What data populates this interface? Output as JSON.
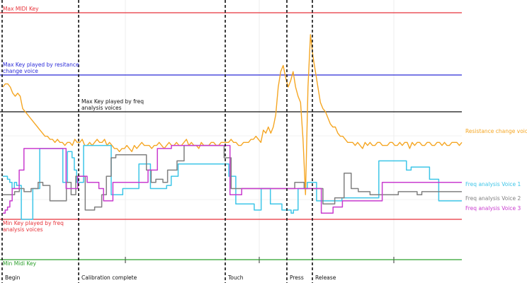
{
  "chart_data": {
    "type": "line",
    "title": "",
    "xlabel": "",
    "ylabel": "",
    "grid": true,
    "reference_lines": [
      {
        "name": "max_midi",
        "label": "Max MIDI Key",
        "color": "#e8333a"
      },
      {
        "name": "max_resistance",
        "label": "Max Key played by resitance change voice",
        "label_lines": [
          "Max Key played by resitance",
          "change voice"
        ],
        "color": "#2a2ad8"
      },
      {
        "name": "max_freq",
        "label": "Max Key played by freq analysis voices",
        "label_lines": [
          "Max Key played by freq",
          "analysis voices"
        ],
        "color": "#111111"
      },
      {
        "name": "min_freq",
        "label": "Min Key played by freq analysis voices",
        "label_lines": [
          "Min Key played by freq",
          "analysis voices"
        ],
        "color": "#e8333a"
      },
      {
        "name": "min_midi",
        "label": "Min Midi Key",
        "color": "#2ca02c"
      }
    ],
    "events": [
      {
        "label": "Begin"
      },
      {
        "label": "Calibration complete"
      },
      {
        "label": "Touch"
      },
      {
        "label": "Press"
      },
      {
        "label": "Release"
      }
    ],
    "series": [
      {
        "name": "Resistance change voice",
        "color": "#f5a623",
        "values": [
          55,
          56,
          56,
          55,
          53,
          52,
          53,
          52,
          48,
          47,
          46,
          45,
          44,
          43,
          42,
          41,
          40,
          39,
          39,
          38,
          38,
          37,
          38,
          37,
          37,
          36,
          37,
          37,
          36,
          38,
          37,
          37,
          38,
          36,
          36,
          37,
          36,
          37,
          38,
          37,
          37,
          38,
          36,
          37,
          36,
          35,
          35,
          34,
          35,
          35,
          36,
          35,
          34,
          36,
          35,
          36,
          37,
          36,
          36,
          36,
          35,
          36,
          36,
          37,
          36,
          35,
          36,
          37,
          36,
          36,
          37,
          36,
          36,
          37,
          38,
          36,
          37,
          36,
          36,
          35,
          37,
          36,
          36,
          36,
          37,
          37,
          36,
          36,
          37,
          37,
          37,
          37,
          38,
          37,
          37,
          36,
          36,
          37,
          37,
          37,
          38,
          38,
          39,
          38,
          37,
          41,
          40,
          42,
          40,
          42,
          46,
          55,
          60,
          62,
          58,
          55,
          57,
          60,
          55,
          52,
          50,
          38,
          20,
          55,
          72,
          65,
          60,
          55,
          50,
          48,
          47,
          45,
          43,
          42,
          42,
          40,
          39,
          39,
          38,
          37,
          37,
          37,
          36,
          37,
          36,
          35,
          37,
          36,
          37,
          36,
          36,
          37,
          37,
          36,
          36,
          36,
          37,
          37,
          36,
          36,
          37,
          36,
          37,
          37,
          35,
          37,
          36,
          37,
          37,
          36,
          36,
          37,
          37,
          36,
          36,
          37,
          37,
          36,
          37,
          36,
          36,
          37,
          37,
          37,
          36,
          37
        ]
      },
      {
        "name": "Freq analysis Voice 1",
        "color": "#3ec6e8",
        "values": [
          26,
          26,
          25,
          24,
          22,
          24,
          23,
          23,
          12,
          12,
          12,
          12,
          12,
          22,
          22,
          22,
          35,
          35,
          35,
          35,
          35,
          35,
          35,
          35,
          35,
          35,
          24,
          24,
          34,
          34,
          32,
          28,
          24,
          24,
          24,
          36,
          36,
          36,
          36,
          36,
          36,
          36,
          36,
          36,
          36,
          36,
          36,
          20,
          20,
          20,
          20,
          20,
          22,
          22,
          22,
          22,
          22,
          22,
          22,
          30,
          30,
          30,
          30,
          30,
          22,
          22,
          22,
          22,
          22,
          22,
          22,
          23,
          23,
          26,
          26,
          26,
          30,
          30,
          30,
          30,
          30,
          30,
          30,
          30,
          30,
          30,
          30,
          30,
          30,
          30,
          30,
          30,
          30,
          30,
          30,
          30,
          30,
          30,
          26,
          26,
          26,
          17,
          17,
          17,
          17,
          17,
          17,
          17,
          17,
          15,
          15,
          15,
          22,
          22,
          22,
          22,
          17,
          17,
          17,
          17,
          17,
          15,
          15,
          15,
          15,
          14,
          15,
          15,
          22,
          22,
          22,
          22,
          24,
          24,
          24,
          24,
          18,
          18,
          18,
          18,
          18,
          18,
          18,
          18,
          18,
          18,
          18,
          19,
          19,
          19,
          19,
          19,
          19,
          19,
          19,
          19,
          19,
          19,
          19,
          19,
          19,
          19,
          19,
          31,
          31,
          31,
          31,
          31,
          31,
          31,
          31,
          31,
          31,
          31,
          31,
          28,
          28,
          29,
          29,
          29,
          29,
          29,
          29,
          29,
          29,
          25,
          25,
          25,
          25,
          18,
          18,
          18,
          18,
          18,
          18,
          18,
          18,
          18,
          18,
          18
        ]
      },
      {
        "name": "Freq analysis Voice 2",
        "color": "#808080",
        "values": [
          20,
          20,
          20,
          20,
          20,
          21,
          21,
          22,
          22,
          21,
          21,
          21,
          22,
          22,
          22,
          24,
          24,
          23,
          23,
          23,
          18,
          18,
          18,
          18,
          18,
          18,
          18,
          24,
          24,
          20,
          20,
          26,
          26,
          26,
          26,
          15,
          15,
          15,
          15,
          16,
          16,
          16,
          20,
          20,
          26,
          26,
          32,
          32,
          33,
          33,
          33,
          33,
          33,
          33,
          33,
          33,
          33,
          33,
          33,
          33,
          33,
          28,
          28,
          24,
          24,
          25,
          25,
          25,
          24,
          24,
          28,
          28,
          28,
          28,
          31,
          31,
          31,
          36,
          36,
          36,
          36,
          36,
          36,
          36,
          36,
          36,
          36,
          36,
          36,
          36,
          36,
          36,
          36,
          36,
          32,
          32,
          32,
          22,
          22,
          22,
          22,
          22,
          22,
          22,
          22,
          22,
          22,
          22,
          22,
          22,
          22,
          22,
          22,
          22,
          22,
          22,
          22,
          22,
          22,
          22,
          22,
          22,
          22,
          22,
          24,
          24,
          24,
          24,
          22,
          22,
          22,
          22,
          22,
          22,
          22,
          22,
          17,
          17,
          17,
          17,
          17,
          19,
          19,
          19,
          19,
          27,
          27,
          27,
          22,
          22,
          22,
          21,
          21,
          21,
          21,
          21,
          20,
          20,
          20,
          20,
          20,
          20,
          20,
          20,
          20,
          20,
          20,
          20,
          21,
          21,
          21,
          21,
          21,
          21,
          21,
          21,
          20,
          20,
          21,
          21,
          21,
          21,
          21,
          21,
          21,
          21,
          21,
          21,
          21,
          21,
          21,
          21,
          21,
          21,
          21,
          21
        ]
      },
      {
        "name": "Freq analysis Voice 3",
        "color": "#c93ccf",
        "values": [
          14,
          15,
          16,
          18,
          22,
          22,
          22,
          28,
          28,
          35,
          35,
          35,
          35,
          35,
          35,
          35,
          35,
          35,
          35,
          35,
          35,
          35,
          35,
          35,
          35,
          35,
          35,
          22,
          22,
          22,
          22,
          22,
          26,
          26,
          26,
          26,
          24,
          24,
          24,
          24,
          24,
          22,
          22,
          18,
          18,
          18,
          18,
          24,
          24,
          24,
          24,
          24,
          24,
          24,
          24,
          24,
          24,
          24,
          24,
          24,
          24,
          24,
          28,
          28,
          28,
          28,
          35,
          35,
          35,
          35,
          35,
          35,
          36,
          36,
          36,
          36,
          36,
          36,
          36,
          36,
          36,
          36,
          36,
          36,
          36,
          36,
          36,
          36,
          36,
          36,
          36,
          36,
          36,
          36,
          36,
          36,
          36,
          20,
          20,
          20,
          20,
          20,
          22,
          22,
          22,
          22,
          22,
          22,
          22,
          22,
          22,
          22,
          22,
          22,
          22,
          22,
          22,
          22,
          22,
          22,
          22,
          22,
          22,
          22,
          22,
          22,
          22,
          22,
          22,
          22,
          22,
          22,
          22,
          22,
          22,
          22,
          14,
          14,
          14,
          14,
          14,
          16,
          16,
          16,
          16,
          18,
          18,
          18,
          18,
          18,
          18,
          18,
          18,
          18,
          18,
          18,
          18,
          18,
          18,
          18,
          18,
          18,
          24,
          24,
          24,
          24,
          24,
          24,
          24,
          24,
          24,
          24,
          24,
          24,
          24,
          24,
          24,
          24,
          24,
          24,
          24,
          24,
          24,
          24,
          24,
          24,
          24,
          24,
          24,
          24,
          24,
          24,
          24,
          24,
          24,
          24,
          24
        ]
      }
    ]
  }
}
